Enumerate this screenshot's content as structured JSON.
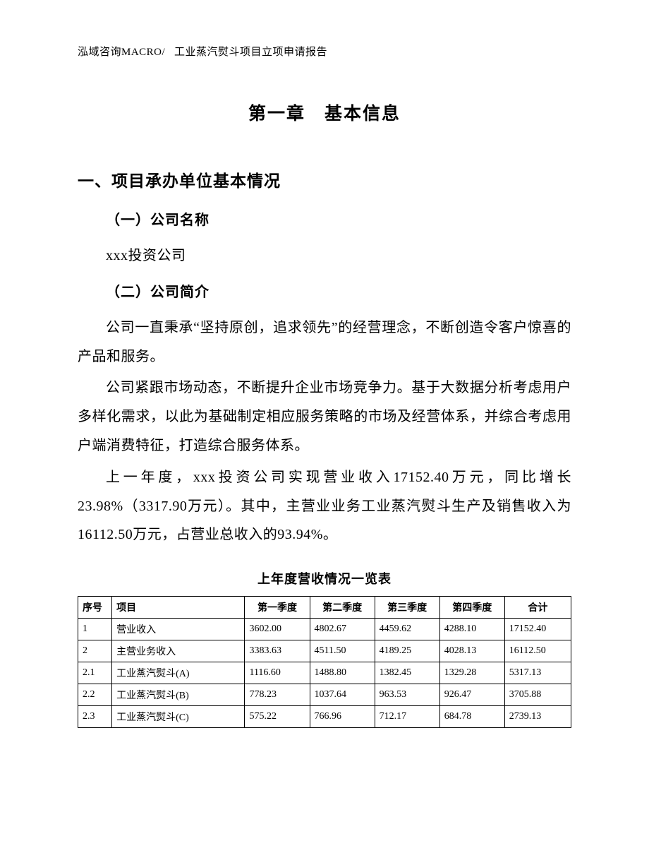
{
  "header": {
    "left": "泓域咨询MACRO/",
    "right": "工业蒸汽熨斗项目立项申请报告"
  },
  "chapter_title": "第一章　基本信息",
  "section1_title": "一、项目承办单位基本情况",
  "sub1_title": "（一）公司名称",
  "company_name": "xxx投资公司",
  "sub2_title": "（二）公司简介",
  "para1": "公司一直秉承“坚持原创，追求领先”的经营理念，不断创造令客户惊喜的产品和服务。",
  "para2": "公司紧跟市场动态，不断提升企业市场竞争力。基于大数据分析考虑用户多样化需求，以此为基础制定相应服务策略的市场及经营体系，并综合考虑用户端消费特征，打造综合服务体系。",
  "para3": "上一年度，xxx投资公司实现营业收入17152.40万元，同比增长23.98%（3317.90万元）。其中，主营业业务工业蒸汽熨斗生产及销售收入为16112.50万元，占营业总收入的93.94%。",
  "table": {
    "title": "上年度营收情况一览表",
    "columns": [
      "序号",
      "项目",
      "第一季度",
      "第二季度",
      "第三季度",
      "第四季度",
      "合计"
    ],
    "rows": [
      [
        "1",
        "营业收入",
        "3602.00",
        "4802.67",
        "4459.62",
        "4288.10",
        "17152.40"
      ],
      [
        "2",
        "主营业务收入",
        "3383.63",
        "4511.50",
        "4189.25",
        "4028.13",
        "16112.50"
      ],
      [
        "2.1",
        "工业蒸汽熨斗(A)",
        "1116.60",
        "1488.80",
        "1382.45",
        "1329.28",
        "5317.13"
      ],
      [
        "2.2",
        "工业蒸汽熨斗(B)",
        "778.23",
        "1037.64",
        "963.53",
        "926.47",
        "3705.88"
      ],
      [
        "2.3",
        "工业蒸汽熨斗(C)",
        "575.22",
        "766.96",
        "712.17",
        "684.78",
        "2739.13"
      ]
    ]
  }
}
